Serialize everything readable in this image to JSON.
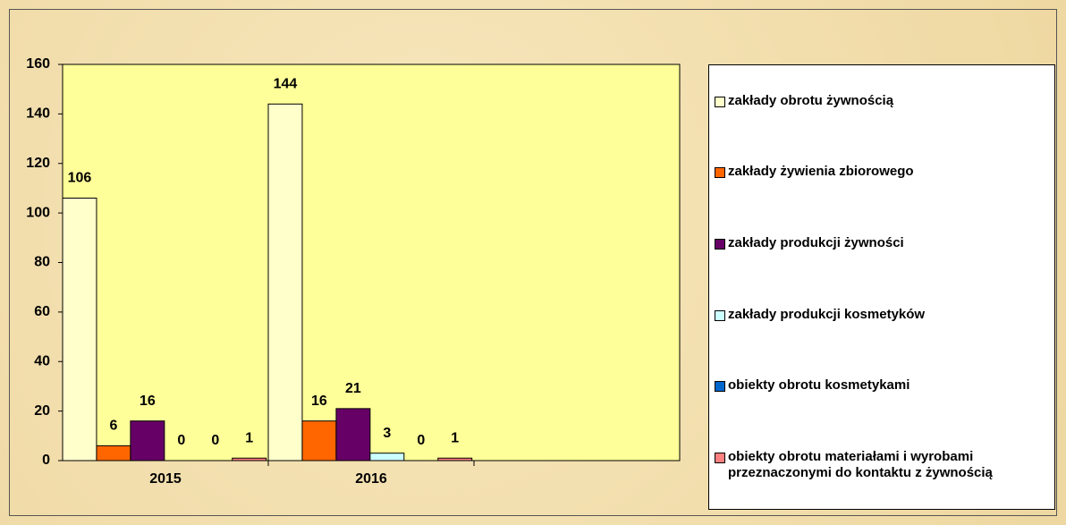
{
  "chart_data": {
    "type": "bar",
    "categories": [
      "2015",
      "2016",
      null
    ],
    "series": [
      {
        "name": "zakłady obrotu żywnością",
        "color": "#ffffcc",
        "values": [
          106,
          144,
          null
        ]
      },
      {
        "name": "zakłady żywienia zbiorowego",
        "color": "#ff6600",
        "values": [
          6,
          16,
          null
        ]
      },
      {
        "name": "zakłady produkcji żywności",
        "color": "#660066",
        "values": [
          16,
          21,
          null
        ]
      },
      {
        "name": "zakłady produkcji kosmetyków",
        "color": "#ccffff",
        "values": [
          0,
          3,
          null
        ]
      },
      {
        "name": "obiekty obrotu kosmetykami",
        "color": "#0066cc",
        "values": [
          0,
          0,
          null
        ]
      },
      {
        "name": "obiekty obrotu materiałami i wyrobami przeznaczonymi do kontaktu z żywnością",
        "color": "#ff8080",
        "values": [
          1,
          1,
          null
        ]
      }
    ],
    "ylim": [
      0,
      160
    ],
    "yticks": [
      0,
      20,
      40,
      60,
      80,
      100,
      120,
      140,
      160
    ],
    "grid": false,
    "legend": "right",
    "plot_background": "#ffff99"
  }
}
